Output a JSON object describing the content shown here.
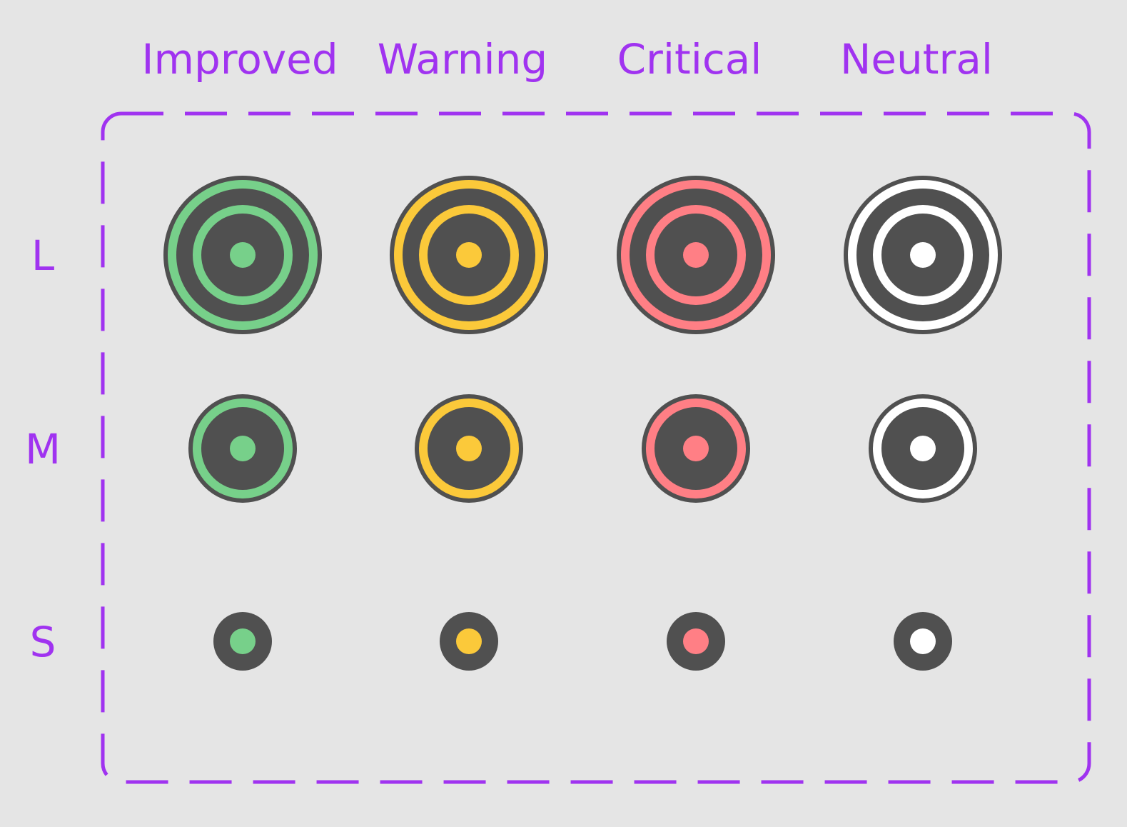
{
  "columns": [
    {
      "label": "Improved",
      "color": "#77d08a"
    },
    {
      "label": "Warning",
      "color": "#fbc93a"
    },
    {
      "label": "Critical",
      "color": "#ff7f85"
    },
    {
      "label": "Neutral",
      "color": "#ffffff"
    }
  ],
  "rows": [
    {
      "label": "L",
      "rings": 2
    },
    {
      "label": "M",
      "rings": 1
    },
    {
      "label": "S",
      "rings": 0
    }
  ],
  "colors": {
    "background": "#e5e5e5",
    "outline": "#a033f0",
    "dark": "#505050"
  }
}
